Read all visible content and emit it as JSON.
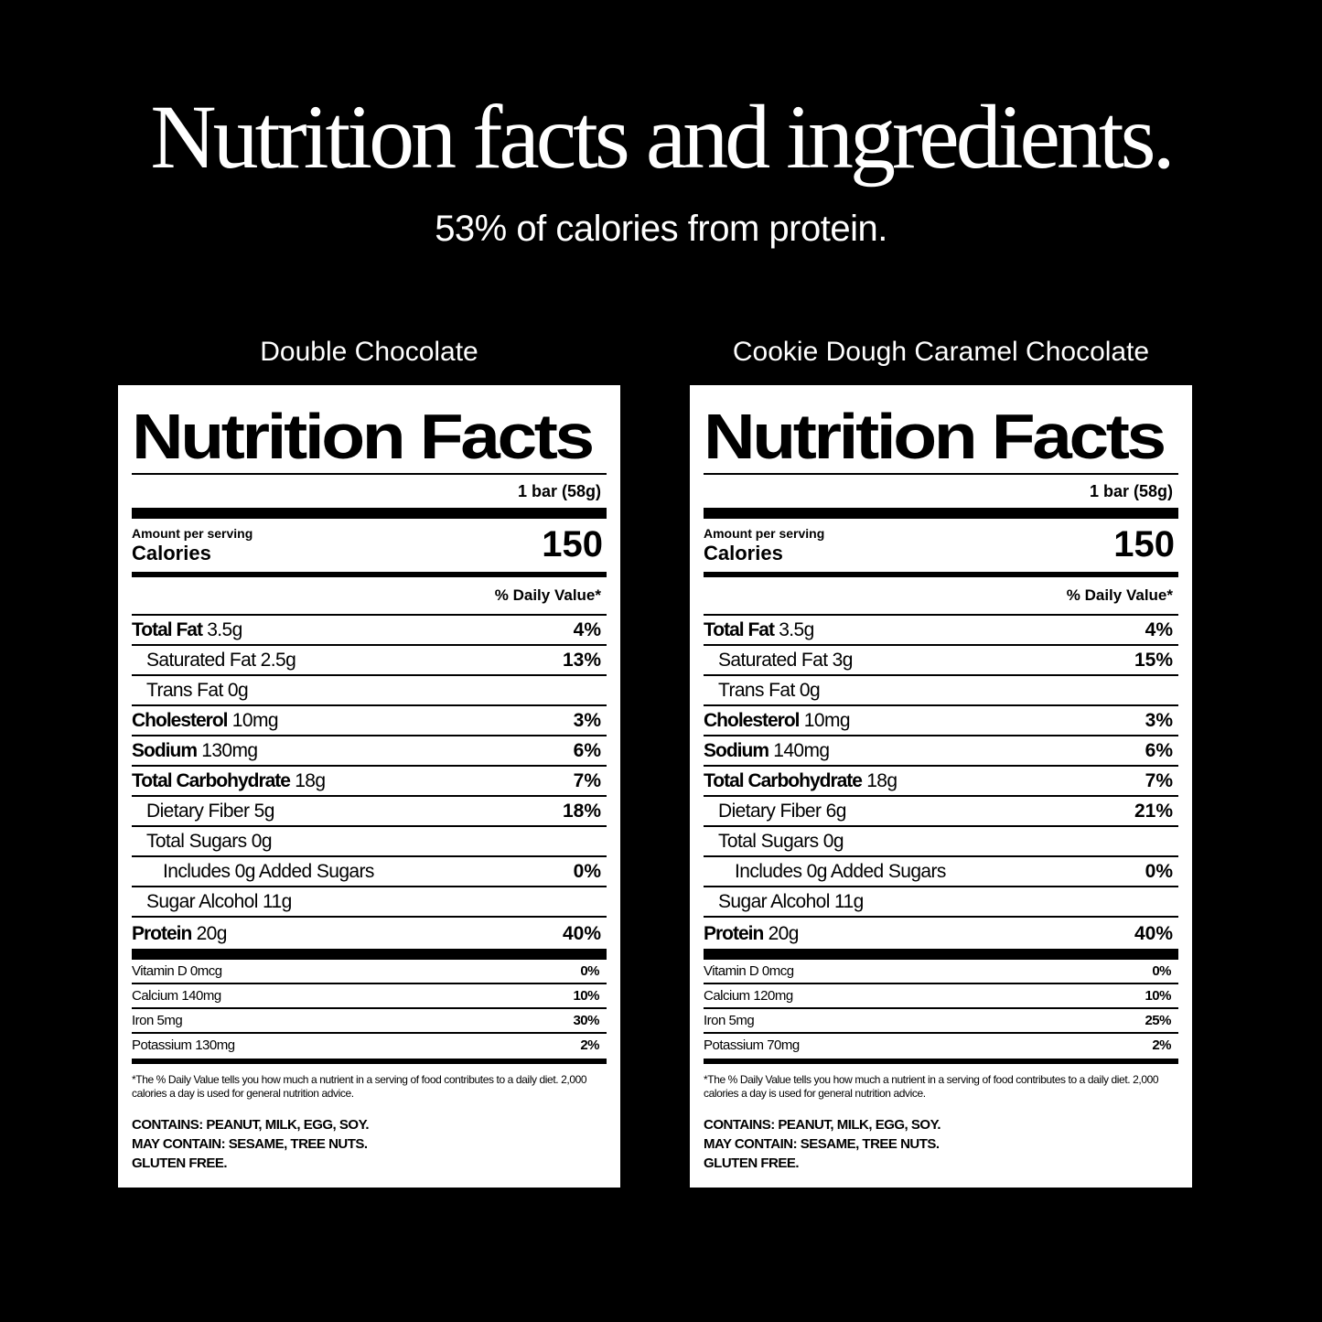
{
  "header": {
    "title": "Nutrition facts and ingredients.",
    "subtitle": "53% of calories from protein."
  },
  "labels": [
    {
      "flavor": "Double Chocolate",
      "heading": "Nutrition Facts",
      "serving": "1 bar (58g)",
      "amount_label": "Amount per serving",
      "calories_label": "Calories",
      "calories": "150",
      "dv_header": "% Daily Value*",
      "rows": [
        {
          "name": "Total Fat",
          "amount": "3.5g",
          "dv": "4%"
        },
        {
          "text": "Saturated Fat 2.5g",
          "dv": "13%"
        },
        {
          "text": "Trans Fat 0g"
        },
        {
          "name": "Cholesterol",
          "amount": "10mg",
          "dv": "3%"
        },
        {
          "name": "Sodium",
          "amount": "130mg",
          "dv": "6%"
        },
        {
          "name": "Total Carbohydrate",
          "amount": "18g",
          "dv": "7%"
        },
        {
          "text": "Dietary Fiber 5g",
          "dv": "18%"
        },
        {
          "text": "Total Sugars 0g"
        },
        {
          "text": "Includes 0g Added Sugars",
          "dv": "0%"
        },
        {
          "text": "Sugar Alcohol 11g"
        },
        {
          "name": "Protein",
          "amount": "20g",
          "dv": "40%"
        }
      ],
      "vitamins": [
        {
          "text": "Vitamin D 0mcg",
          "dv": "0%"
        },
        {
          "text": "Calcium 140mg",
          "dv": "10%"
        },
        {
          "text": "Iron 5mg",
          "dv": "30%"
        },
        {
          "text": "Potassium 130mg",
          "dv": "2%"
        }
      ],
      "footnote": "*The % Daily Value tells you how much a nutrient in a serving of food contributes to a daily diet. 2,000 calories a day is used for general nutrition advice.",
      "allergens": [
        "CONTAINS: PEANUT, MILK, EGG, SOY.",
        "MAY CONTAIN: SESAME, TREE NUTS.",
        "GLUTEN FREE."
      ]
    },
    {
      "flavor": "Cookie Dough Caramel Chocolate",
      "heading": "Nutrition Facts",
      "serving": "1 bar (58g)",
      "amount_label": "Amount per serving",
      "calories_label": "Calories",
      "calories": "150",
      "dv_header": "% Daily Value*",
      "rows": [
        {
          "name": "Total Fat",
          "amount": "3.5g",
          "dv": "4%"
        },
        {
          "text": "Saturated Fat 3g",
          "dv": "15%"
        },
        {
          "text": "Trans Fat 0g"
        },
        {
          "name": "Cholesterol",
          "amount": "10mg",
          "dv": "3%"
        },
        {
          "name": "Sodium",
          "amount": "140mg",
          "dv": "6%"
        },
        {
          "name": "Total Carbohydrate",
          "amount": "18g",
          "dv": "7%"
        },
        {
          "text": "Dietary Fiber 6g",
          "dv": "21%"
        },
        {
          "text": "Total Sugars 0g"
        },
        {
          "text": "Includes 0g Added Sugars",
          "dv": "0%"
        },
        {
          "text": "Sugar Alcohol 11g"
        },
        {
          "name": "Protein",
          "amount": "20g",
          "dv": "40%"
        }
      ],
      "vitamins": [
        {
          "text": "Vitamin D 0mcg",
          "dv": "0%"
        },
        {
          "text": "Calcium 120mg",
          "dv": "10%"
        },
        {
          "text": "Iron 5mg",
          "dv": "25%"
        },
        {
          "text": "Potassium 70mg",
          "dv": "2%"
        }
      ],
      "footnote": "*The % Daily Value tells you how much a nutrient in a serving of food contributes to a daily diet. 2,000 calories a day is used for general nutrition advice.",
      "allergens": [
        "CONTAINS: PEANUT, MILK, EGG, SOY.",
        "MAY CONTAIN: SESAME, TREE NUTS.",
        "GLUTEN FREE."
      ]
    }
  ]
}
